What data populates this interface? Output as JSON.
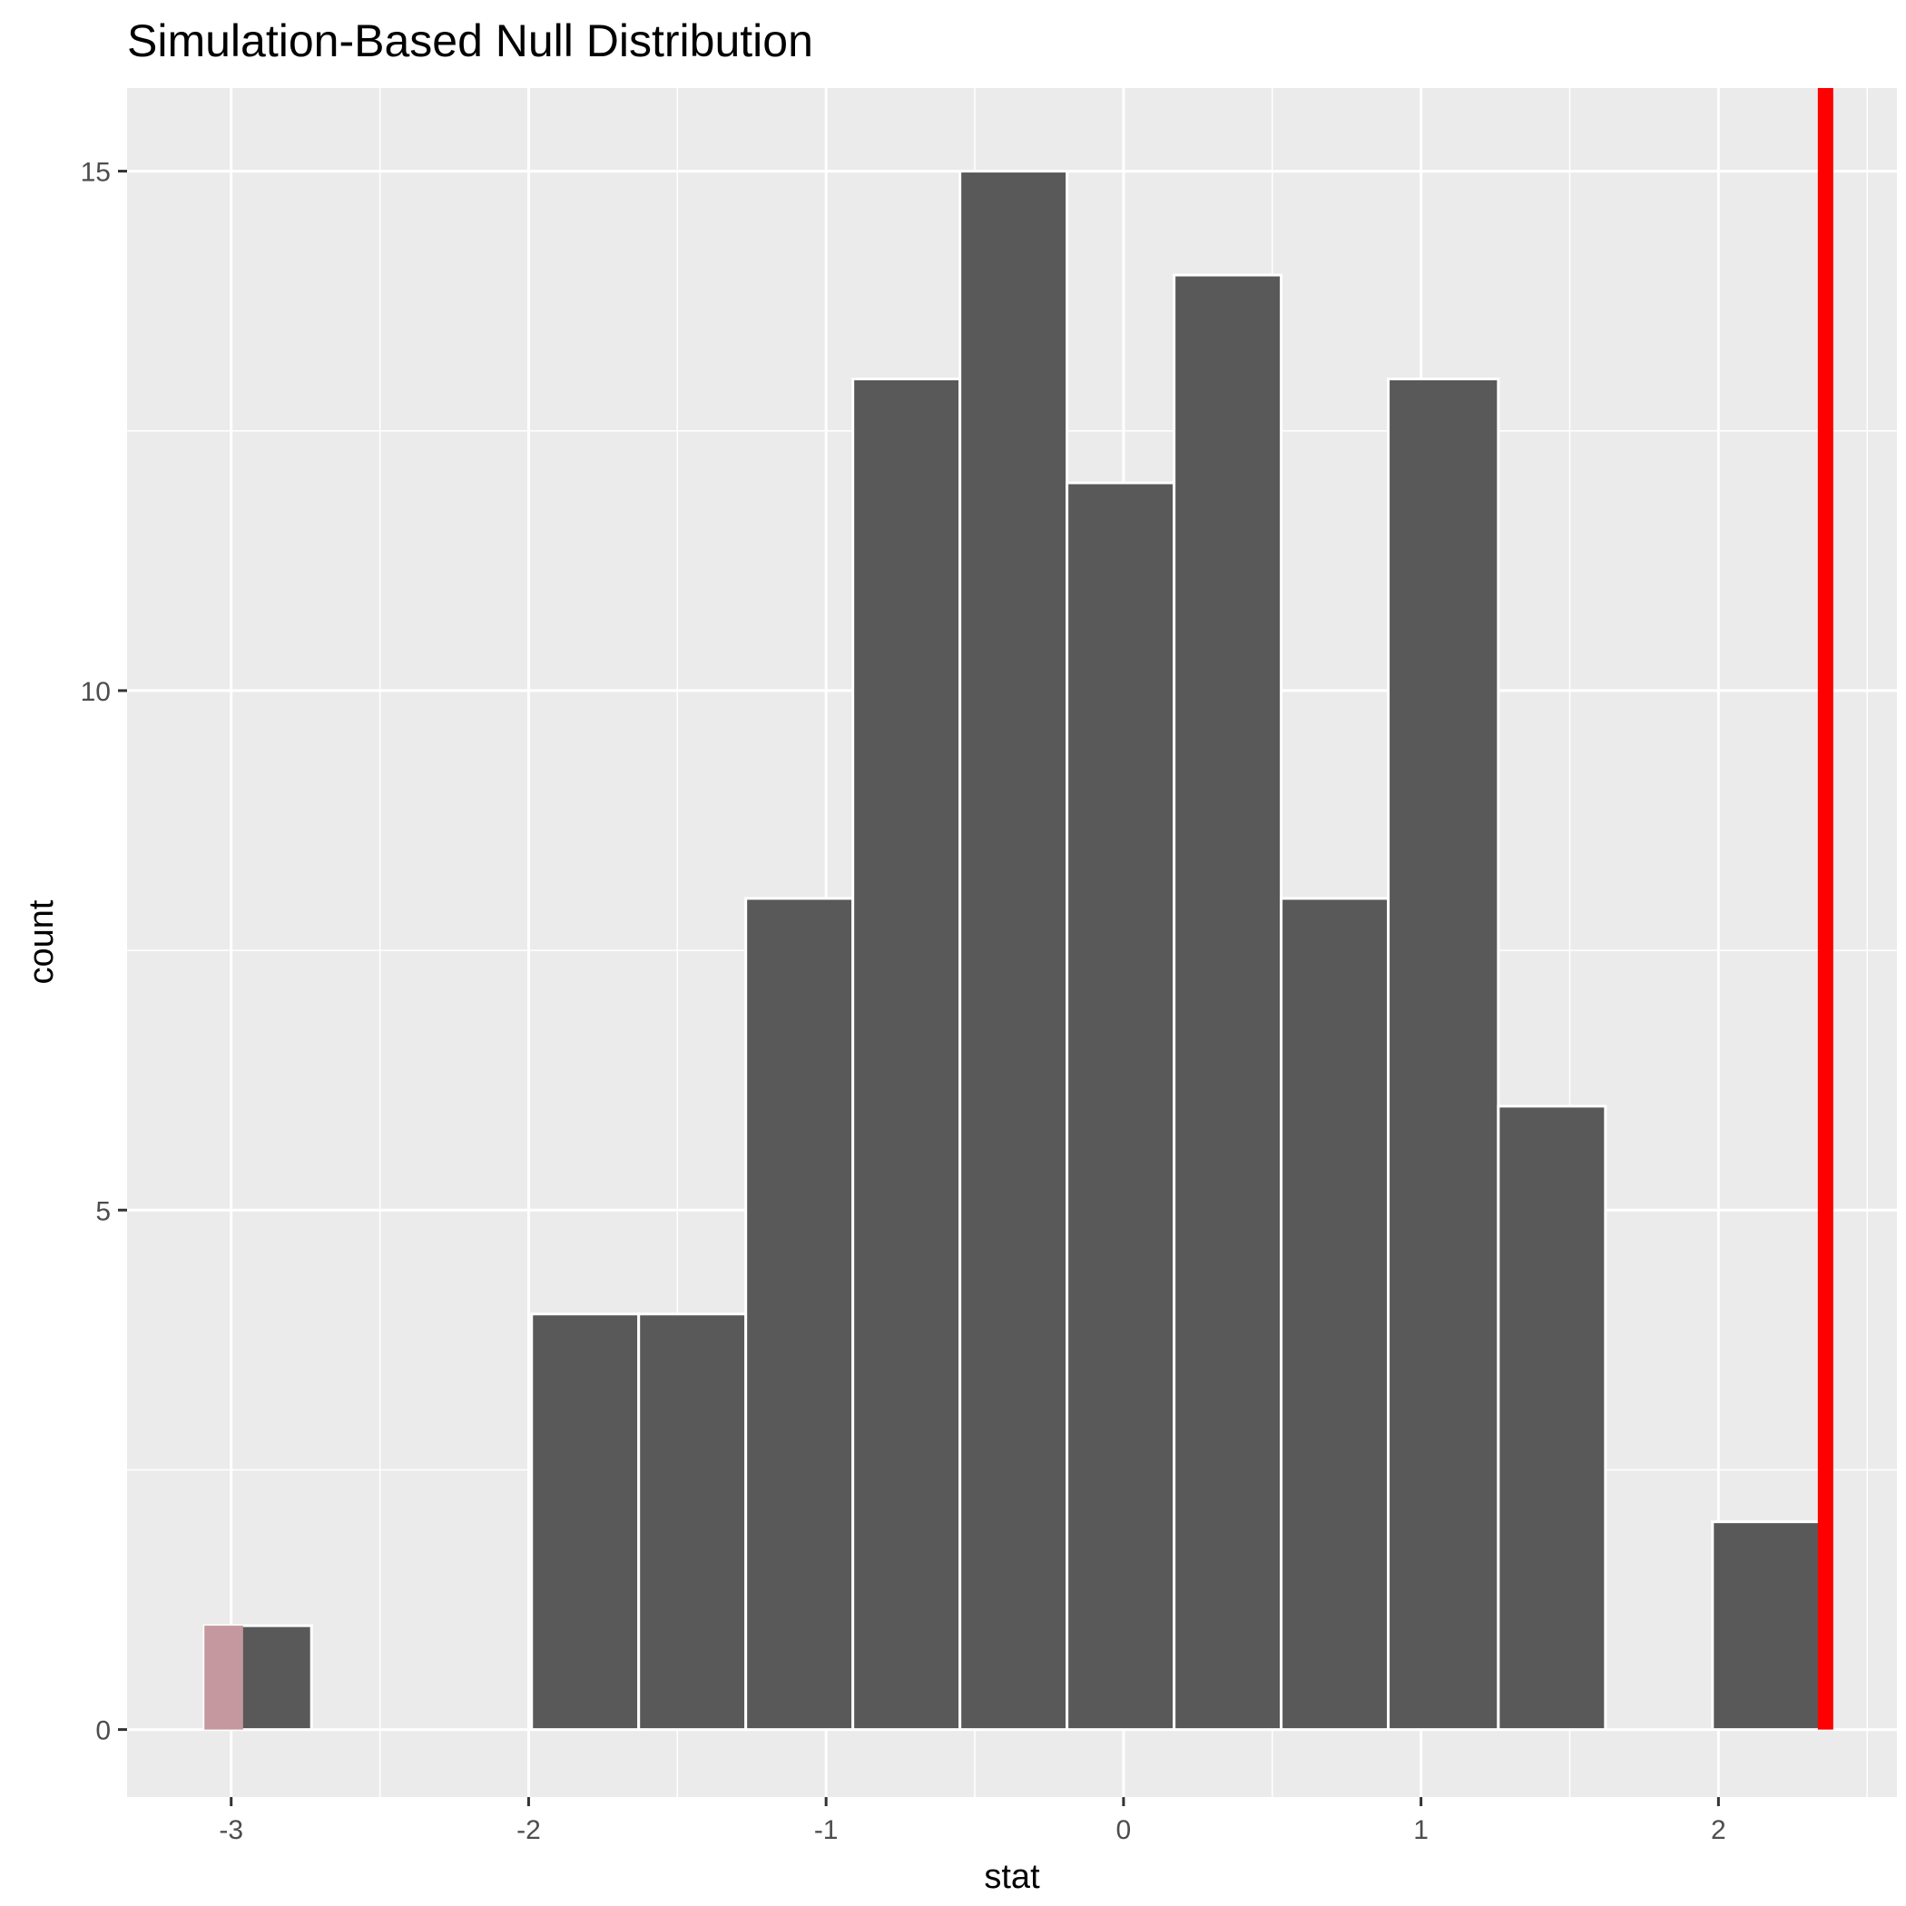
{
  "chart_data": {
    "type": "bar",
    "title": "Simulation-Based Null Distribution",
    "xlabel": "stat",
    "ylabel": "count",
    "xlim": [
      -3.35,
      2.6
    ],
    "ylim": [
      -0.65,
      15.8
    ],
    "x_ticks": [
      -3,
      -2,
      -1,
      0,
      1,
      2
    ],
    "x_tick_labels": [
      "-3",
      "-2",
      "-1",
      "0",
      "1",
      "2"
    ],
    "y_ticks": [
      0,
      5,
      10,
      15
    ],
    "y_tick_labels": [
      "0",
      "5",
      "10",
      "15"
    ],
    "grid": true,
    "legend": "none",
    "bins": [
      {
        "x0": -3.09,
        "x1": -2.73,
        "count": 1
      },
      {
        "x0": -1.99,
        "x1": -1.63,
        "count": 4
      },
      {
        "x0": -1.63,
        "x1": -1.27,
        "count": 4
      },
      {
        "x0": -1.27,
        "x1": -0.91,
        "count": 8
      },
      {
        "x0": -0.91,
        "x1": -0.55,
        "count": 13
      },
      {
        "x0": -0.55,
        "x1": -0.19,
        "count": 15
      },
      {
        "x0": -0.19,
        "x1": 0.17,
        "count": 12
      },
      {
        "x0": 0.17,
        "x1": 0.53,
        "count": 14
      },
      {
        "x0": 0.53,
        "x1": 0.89,
        "count": 8
      },
      {
        "x0": 0.89,
        "x1": 1.26,
        "count": 13
      },
      {
        "x0": 1.26,
        "x1": 1.62,
        "count": 6
      },
      {
        "x0": 1.98,
        "x1": 2.34,
        "count": 2
      }
    ],
    "shaded_region": {
      "x0": -3.09,
      "x1": -2.96,
      "count": 1,
      "color": "#c4989e"
    },
    "observed_stat": {
      "x": 2.36,
      "color": "#ff0000"
    },
    "bar_color": "#595959",
    "panel_color": "#ebebeb"
  }
}
